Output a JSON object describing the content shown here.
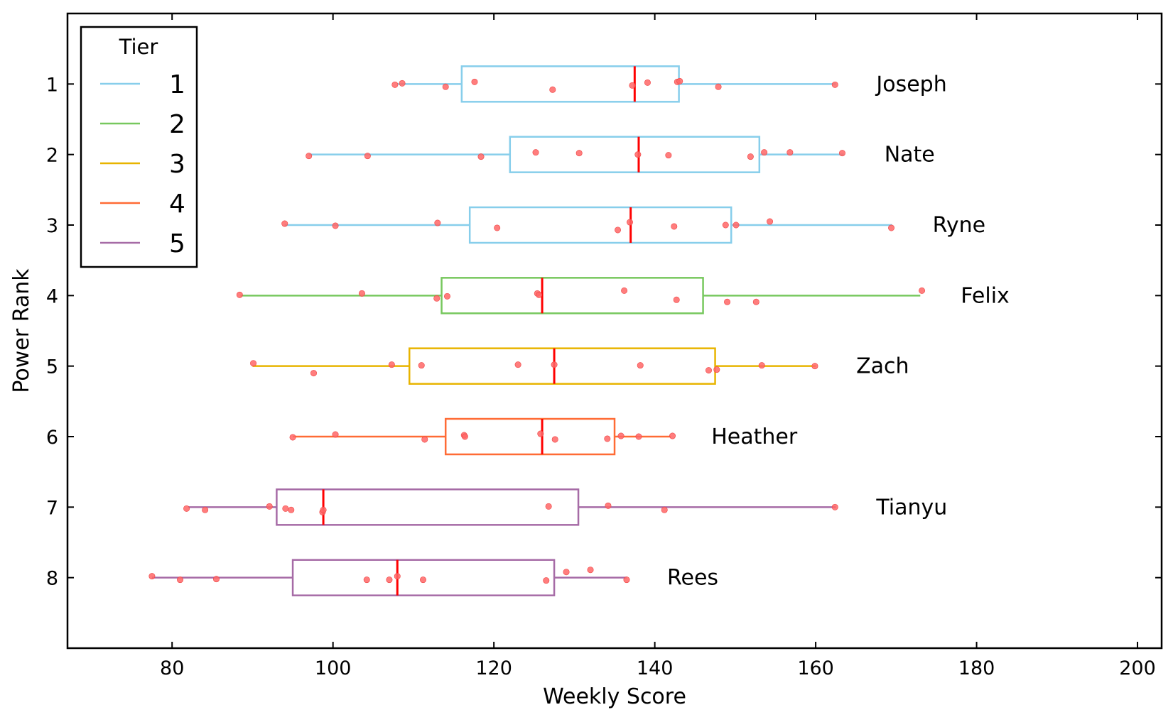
{
  "chart_data": {
    "type": "boxplot",
    "xlabel": "Weekly Score",
    "ylabel": "Power Rank",
    "xlim": [
      67,
      203
    ],
    "ylim": [
      0,
      9
    ],
    "x_ticks": [
      80,
      100,
      120,
      140,
      160,
      180,
      200
    ],
    "y_ticks": [
      1,
      2,
      3,
      4,
      5,
      6,
      7,
      8
    ],
    "orientation": "horizontal",
    "grid": false,
    "legend": {
      "title": "Tier",
      "position": "top-left",
      "entries": [
        {
          "label": "1",
          "color": "#87CEEB"
        },
        {
          "label": "2",
          "color": "#77C85E"
        },
        {
          "label": "3",
          "color": "#E8B400"
        },
        {
          "label": "4",
          "color": "#FF6B35"
        },
        {
          "label": "5",
          "color": "#A66BA6"
        }
      ]
    },
    "median_color": "#FF0000",
    "point_color": "#FF6666",
    "series": [
      {
        "name": "Joseph",
        "rank": 1,
        "tier": 1,
        "whisker_low": 108,
        "q1": 116,
        "median": 137.5,
        "q3": 143,
        "whisker_high": 162.5,
        "points": [
          [
            107.7,
            1.01
          ],
          [
            108.6,
            0.99
          ],
          [
            114,
            1.04
          ],
          [
            117.6,
            0.97
          ],
          [
            127.3,
            1.08
          ],
          [
            137.2,
            1.02
          ],
          [
            139.1,
            0.98
          ],
          [
            142.8,
            0.97
          ],
          [
            143.1,
            0.96
          ],
          [
            147.9,
            1.04
          ],
          [
            162.4,
            1.01
          ]
        ]
      },
      {
        "name": "Nate",
        "rank": 2,
        "tier": 1,
        "whisker_low": 97,
        "q1": 122,
        "median": 138,
        "q3": 153,
        "whisker_high": 163.5,
        "points": [
          [
            97,
            2.02
          ],
          [
            104.3,
            2.02
          ],
          [
            118.4,
            2.03
          ],
          [
            125.2,
            1.97
          ],
          [
            130.6,
            1.98
          ],
          [
            137.9,
            2.0
          ],
          [
            141.7,
            2.01
          ],
          [
            151.9,
            2.03
          ],
          [
            153.6,
            1.97
          ],
          [
            156.8,
            1.97
          ],
          [
            163.3,
            1.98
          ]
        ]
      },
      {
        "name": "Ryne",
        "rank": 3,
        "tier": 1,
        "whisker_low": 94,
        "q1": 117,
        "median": 137,
        "q3": 149.5,
        "whisker_high": 169.5,
        "points": [
          [
            94,
            2.98
          ],
          [
            100.3,
            3.01
          ],
          [
            113,
            2.97
          ],
          [
            120.4,
            3.04
          ],
          [
            135.4,
            3.07
          ],
          [
            136.9,
            2.96
          ],
          [
            142.4,
            3.02
          ],
          [
            148.8,
            3.0
          ],
          [
            150.1,
            3.0
          ],
          [
            154.3,
            2.95
          ],
          [
            169.4,
            3.04
          ]
        ]
      },
      {
        "name": "Felix",
        "rank": 4,
        "tier": 2,
        "whisker_low": 88.5,
        "q1": 113.5,
        "median": 126,
        "q3": 146,
        "whisker_high": 173,
        "points": [
          [
            88.4,
            3.99
          ],
          [
            103.6,
            3.97
          ],
          [
            112.9,
            4.04
          ],
          [
            114.2,
            4.01
          ],
          [
            125.4,
            3.97
          ],
          [
            125.6,
            3.99
          ],
          [
            136.2,
            3.93
          ],
          [
            142.7,
            4.06
          ],
          [
            149,
            4.09
          ],
          [
            152.6,
            4.09
          ],
          [
            173.2,
            3.93
          ]
        ]
      },
      {
        "name": "Zach",
        "rank": 5,
        "tier": 3,
        "whisker_low": 90,
        "q1": 109.5,
        "median": 127.5,
        "q3": 147.5,
        "whisker_high": 160,
        "points": [
          [
            90.1,
            4.96
          ],
          [
            97.6,
            5.1
          ],
          [
            107.3,
            4.98
          ],
          [
            111,
            4.99
          ],
          [
            123,
            4.98
          ],
          [
            127.5,
            4.98
          ],
          [
            138.2,
            4.99
          ],
          [
            146.7,
            5.06
          ],
          [
            147.7,
            5.05
          ],
          [
            153.3,
            4.99
          ],
          [
            159.9,
            5.0
          ]
        ]
      },
      {
        "name": "Heather",
        "rank": 6,
        "tier": 4,
        "whisker_low": 95,
        "q1": 114,
        "median": 126,
        "q3": 135,
        "whisker_high": 142,
        "points": [
          [
            95,
            6.01
          ],
          [
            100.3,
            5.97
          ],
          [
            111.4,
            6.04
          ],
          [
            116.3,
            5.98
          ],
          [
            116.4,
            6.0
          ],
          [
            125.8,
            5.96
          ],
          [
            127.6,
            6.04
          ],
          [
            134.1,
            6.03
          ],
          [
            135.8,
            5.99
          ],
          [
            138,
            6.0
          ],
          [
            142.2,
            5.99
          ]
        ]
      },
      {
        "name": "Tianyu",
        "rank": 7,
        "tier": 5,
        "whisker_low": 82,
        "q1": 93,
        "median": 98.8,
        "q3": 130.5,
        "whisker_high": 162.5,
        "points": [
          [
            81.8,
            7.02
          ],
          [
            84.1,
            7.04
          ],
          [
            92.1,
            6.99
          ],
          [
            94.1,
            7.02
          ],
          [
            94.8,
            7.04
          ],
          [
            98.7,
            7.07
          ],
          [
            98.8,
            7.04
          ],
          [
            126.8,
            6.99
          ],
          [
            134.2,
            6.98
          ],
          [
            141.2,
            7.04
          ],
          [
            162.4,
            7.0
          ]
        ]
      },
      {
        "name": "Rees",
        "rank": 8,
        "tier": 5,
        "whisker_low": 77.5,
        "q1": 95,
        "median": 108,
        "q3": 127.5,
        "whisker_high": 136.5,
        "points": [
          [
            77.5,
            7.98
          ],
          [
            81,
            8.03
          ],
          [
            85.5,
            8.02
          ],
          [
            104.2,
            8.03
          ],
          [
            107,
            8.03
          ],
          [
            108,
            7.98
          ],
          [
            111.2,
            8.03
          ],
          [
            126.5,
            8.04
          ],
          [
            129,
            7.92
          ],
          [
            132,
            7.89
          ],
          [
            136.5,
            8.03
          ]
        ]
      }
    ]
  }
}
